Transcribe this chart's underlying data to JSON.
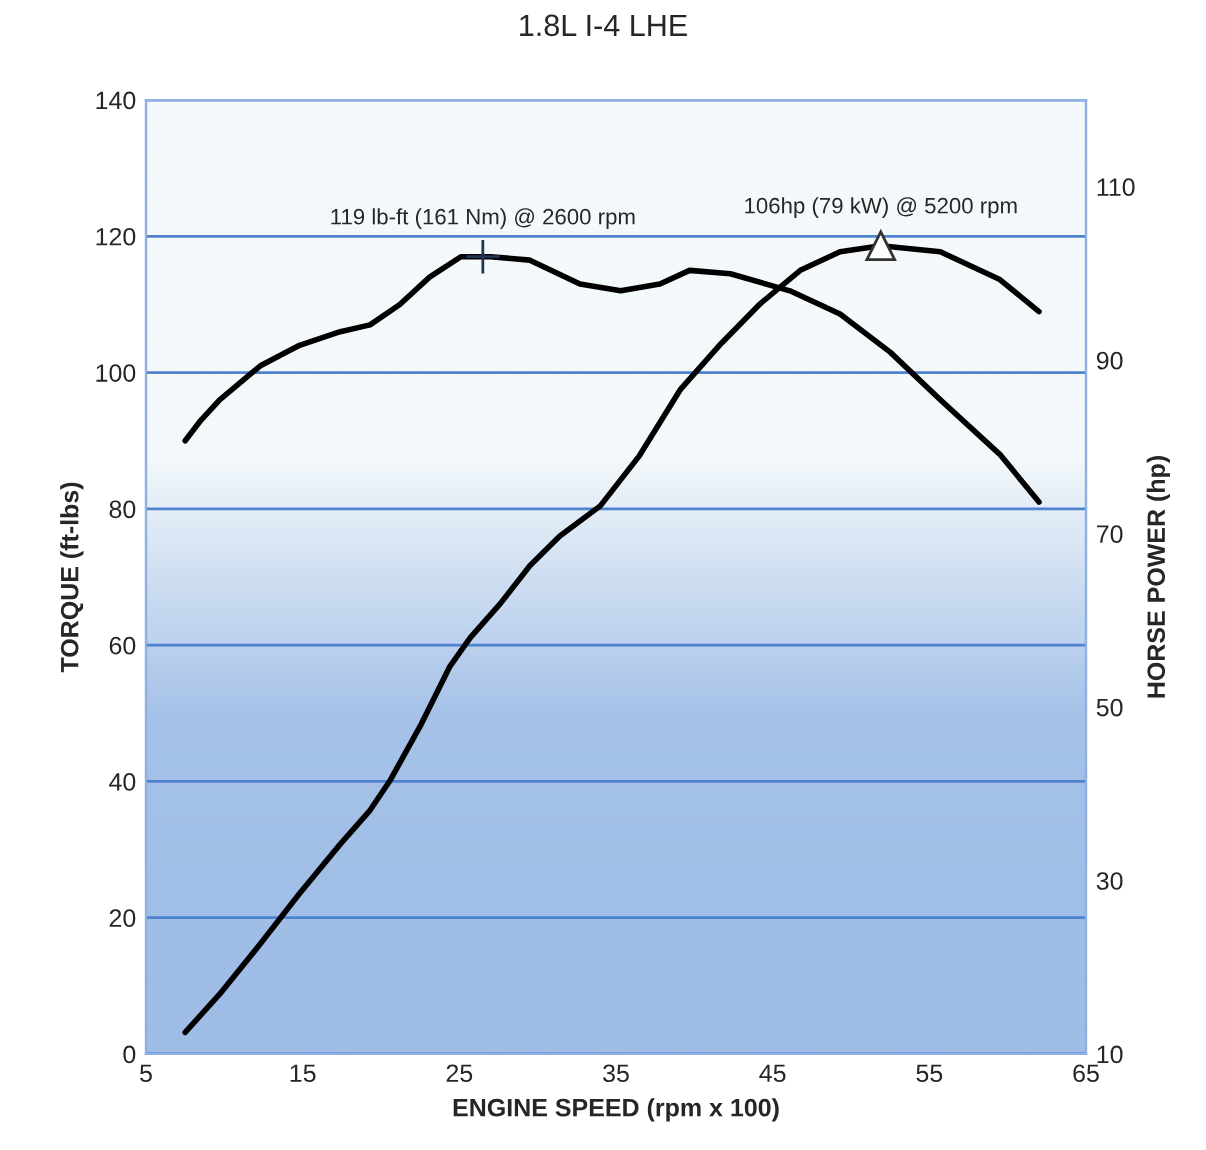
{
  "chart_data": {
    "type": "line",
    "title": "1.8L I-4 LHE",
    "xlabel": "ENGINE SPEED (rpm x 100)",
    "ylabel": "TORQUE (ft-lbs)",
    "y2label": "HORSE POWER (hp)",
    "xlim": [
      5,
      65
    ],
    "xticks": [
      5,
      15,
      25,
      35,
      45,
      55,
      65
    ],
    "ylim": [
      0,
      140
    ],
    "yticks": [
      0,
      20,
      40,
      60,
      80,
      100,
      120,
      140
    ],
    "y2lim": [
      10,
      120
    ],
    "y2ticks": [
      10,
      30,
      50,
      70,
      90,
      110
    ],
    "grid": "y",
    "marker": "none",
    "line_style": "solid",
    "series": [
      {
        "color": "#000000",
        "axis": "y",
        "x": [
          7.5,
          8.5,
          9.7,
          12.3,
          14.8,
          17.4,
          19.3,
          21.2,
          23.1,
          25.1,
          27.0,
          29.5,
          32.7,
          35.3,
          37.8,
          39.7,
          42.3,
          46.1,
          49.3,
          52.5,
          55.7,
          59.5,
          62.0
        ],
        "values": [
          90,
          93,
          96,
          101,
          104,
          106,
          107,
          110,
          114,
          117,
          117,
          116.5,
          113,
          112,
          113,
          115,
          114.5,
          112,
          108.6,
          103,
          96,
          88,
          81
        ]
      },
      {
        "color": "#000000",
        "axis": "y2",
        "x": [
          7.5,
          9.7,
          12.3,
          14.8,
          17.4,
          19.3,
          20.6,
          22.5,
          24.4,
          25.7,
          27.6,
          29.5,
          31.4,
          34.0,
          36.5,
          39.1,
          41.7,
          44.2,
          46.8,
          49.3,
          51.9,
          55.7,
          59.5,
          62.0
        ],
        "values": [
          12.5,
          16.9,
          22.7,
          28.5,
          34.2,
          38.1,
          41.6,
          47.8,
          54.7,
          58,
          61.9,
          66.3,
          69.7,
          73.2,
          79,
          86.6,
          91.9,
          96.5,
          100.4,
          102.5,
          103.2,
          102.5,
          99.3,
          95.6
        ]
      }
    ],
    "annotations": [
      {
        "text": "119 lb-ft (161 Nm) @ 2600 rpm",
        "x": 26.5,
        "y": 117
      },
      "106hp (79 kW) @ 5200 rpm"
    ]
  }
}
